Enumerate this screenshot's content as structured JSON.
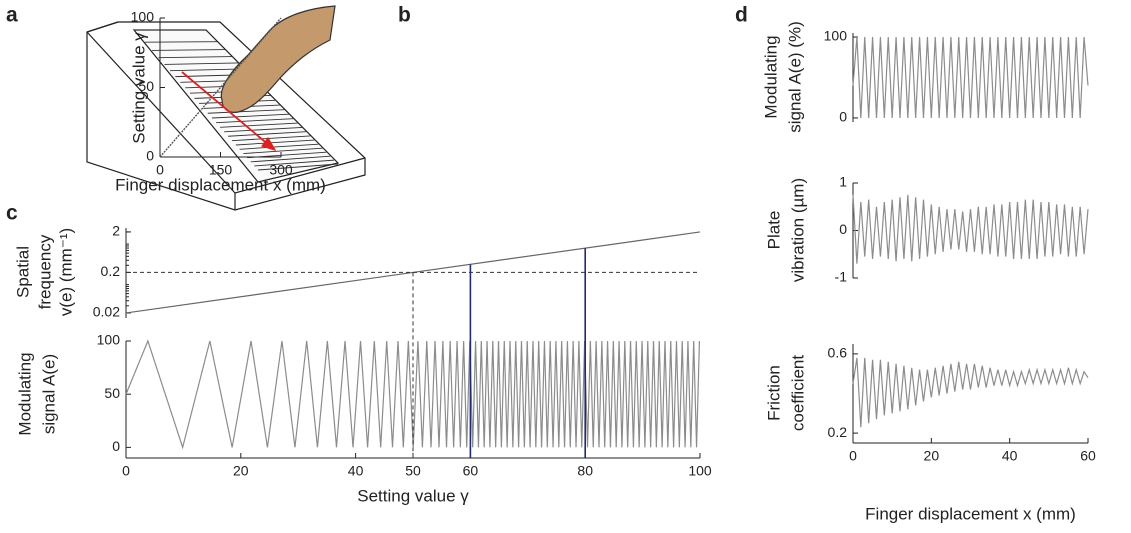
{
  "panel_labels": {
    "a": "a",
    "b": "b",
    "c": "c",
    "d": "d"
  },
  "chart_data": [
    {
      "type": "line",
      "xlabel": "Finger displacement x (mm)",
      "ylabel": [
        "Setting value γ"
      ],
      "x": [
        0,
        300
      ],
      "values": [
        0,
        100
      ],
      "color": "#555555",
      "xlim": [
        0,
        300
      ],
      "ylim": [
        0,
        100
      ],
      "xticks": [
        0,
        150,
        300
      ],
      "yticks": [
        0,
        50,
        100
      ]
    },
    {
      "type": "line",
      "ylabel": [
        "Spatial",
        "frequency",
        "v(e) (mm⁻¹)"
      ],
      "log_y": true,
      "x": [
        0,
        100
      ],
      "values": [
        0.02,
        2
      ],
      "color": "#666666",
      "xlim": [
        0,
        100
      ],
      "ylim": [
        0.015,
        2.5
      ],
      "yticks": [
        0.02,
        0.2,
        2
      ],
      "hline": 0.2,
      "vlines": [
        {
          "x": 50,
          "dashed": true,
          "color": "#333333"
        },
        {
          "x": 60,
          "color": "#1f2a7a"
        },
        {
          "x": 80,
          "color": "#1f2a7a"
        }
      ]
    },
    {
      "type": "line",
      "xlabel": "Setting value γ",
      "ylabel": [
        "Modulating",
        "signal A(e)"
      ],
      "color": "#8c8c8c",
      "xlim": [
        0,
        100
      ],
      "ylim": [
        -10,
        100
      ],
      "xticks": [
        0,
        20,
        40,
        50,
        60,
        80,
        100
      ],
      "yticks": [
        0,
        50,
        100
      ],
      "x": [
        0,
        3.81,
        9.87,
        14.61,
        18.49,
        21.78,
        24.64,
        27.17,
        29.43,
        31.48,
        33.35,
        35.08,
        36.67,
        38.16,
        39.55,
        40.86,
        42.09,
        43.26,
        44.37,
        45.42,
        46.43,
        47.39,
        48.31,
        49.19,
        50.04,
        50.86,
        51.64,
        52.4,
        53.14,
        53.84,
        54.53,
        55.2,
        55.84,
        56.47,
        57.08,
        57.68,
        58.25,
        58.82,
        59.36,
        59.9,
        60.4,
        60.9,
        61.4,
        61.9,
        62.4,
        62.9,
        63.4,
        63.9,
        64.4,
        64.9,
        65.4,
        65.9,
        66.4,
        66.9,
        67.4,
        67.9,
        68.4,
        68.9,
        69.4,
        69.9,
        70.4,
        70.9,
        71.4,
        71.9,
        72.4,
        72.9,
        73.4,
        73.9,
        74.4,
        74.9,
        75.4,
        75.9,
        76.4,
        76.9,
        77.4,
        77.9,
        78.4,
        78.9,
        79.4,
        79.9,
        80.4,
        80.9,
        81.4,
        81.9,
        82.4,
        82.9,
        83.4,
        83.9,
        84.4,
        84.9,
        85.4,
        85.9,
        86.4,
        86.9,
        87.4,
        87.9,
        88.4,
        88.9,
        89.4,
        89.9,
        90.4,
        90.9,
        91.4,
        91.9,
        92.4,
        92.9,
        93.4,
        93.9,
        94.4,
        94.9,
        95.4,
        95.9,
        96.4,
        96.9,
        97.4,
        97.9,
        98.4,
        98.9,
        99.4,
        99.9
      ],
      "values": [
        50,
        100,
        0,
        100,
        0,
        100,
        0,
        100,
        0,
        100,
        0,
        100,
        0,
        100,
        0,
        100,
        0,
        100,
        0,
        100,
        0,
        100,
        0,
        100,
        0,
        100,
        0,
        100,
        0,
        100,
        0,
        100,
        0,
        100,
        0,
        100,
        0,
        100,
        0,
        100,
        0,
        100,
        0,
        100,
        0,
        100,
        0,
        100,
        0,
        100,
        0,
        100,
        0,
        100,
        0,
        100,
        0,
        100,
        0,
        100,
        0,
        100,
        0,
        100,
        0,
        100,
        0,
        100,
        0,
        100,
        0,
        100,
        0,
        100,
        0,
        100,
        0,
        100,
        0,
        100,
        0,
        100,
        0,
        100,
        0,
        100,
        0,
        100,
        0,
        100,
        0,
        100,
        0,
        100,
        0,
        100,
        0,
        100,
        0,
        100,
        0,
        100,
        0,
        100,
        0,
        100,
        0,
        100,
        0,
        100,
        0,
        100,
        0,
        100,
        0,
        100,
        0,
        100,
        0,
        100
      ]
    },
    {
      "type": "line",
      "ylabel": [
        "Modulating",
        "signal A(e) (%)"
      ],
      "color": "#8c8c8c",
      "xlim": [
        0,
        60
      ],
      "ylim": [
        -5,
        105
      ],
      "yticks": [
        0,
        100
      ],
      "x": [
        0,
        1,
        2,
        3,
        4,
        5,
        6,
        7,
        8,
        9,
        10,
        11,
        12,
        13,
        14,
        15,
        16,
        17,
        18,
        19,
        20,
        21,
        22,
        23,
        24,
        25,
        26,
        27,
        28,
        29,
        30,
        31,
        32,
        33,
        34,
        35,
        36,
        37,
        38,
        39,
        40,
        41,
        42,
        43,
        44,
        45,
        46,
        47,
        48,
        49,
        50,
        51,
        52,
        53,
        54,
        55,
        56,
        57,
        58,
        59,
        60
      ],
      "values": [
        40,
        100,
        0,
        100,
        0,
        100,
        0,
        100,
        0,
        100,
        0,
        100,
        0,
        100,
        0,
        100,
        0,
        100,
        0,
        100,
        0,
        100,
        0,
        100,
        0,
        100,
        0,
        100,
        0,
        100,
        0,
        100,
        0,
        100,
        0,
        100,
        0,
        100,
        0,
        100,
        0,
        100,
        0,
        100,
        0,
        100,
        0,
        100,
        0,
        100,
        0,
        100,
        0,
        100,
        0,
        100,
        0,
        100,
        0,
        100,
        40
      ]
    },
    {
      "type": "line",
      "ylabel": [
        "Plate",
        "vibration (µm)"
      ],
      "color": "#8c8c8c",
      "xlim": [
        0,
        60
      ],
      "ylim": [
        -1,
        1
      ],
      "yticks": [
        -1,
        0,
        1
      ],
      "x": [
        0,
        1,
        2,
        3,
        4,
        5,
        6,
        7,
        8,
        9,
        10,
        11,
        12,
        13,
        14,
        15,
        16,
        17,
        18,
        19,
        20,
        21,
        22,
        23,
        24,
        25,
        26,
        27,
        28,
        29,
        30,
        31,
        32,
        33,
        34,
        35,
        36,
        37,
        38,
        39,
        40,
        41,
        42,
        43,
        44,
        45,
        46,
        47,
        48,
        49,
        50,
        51,
        52,
        53,
        54,
        55,
        56,
        57,
        58,
        59,
        60
      ],
      "values": [
        0.75,
        -0.7,
        0.6,
        -0.55,
        0.65,
        -0.6,
        0.5,
        -0.55,
        0.6,
        -0.6,
        0.65,
        -0.65,
        0.7,
        -0.6,
        0.75,
        -0.65,
        0.7,
        -0.6,
        0.65,
        -0.55,
        0.55,
        -0.5,
        0.5,
        -0.45,
        0.45,
        -0.4,
        0.45,
        -0.4,
        0.4,
        -0.45,
        0.45,
        -0.45,
        0.5,
        -0.5,
        0.5,
        -0.5,
        0.55,
        -0.55,
        0.55,
        -0.55,
        0.6,
        -0.6,
        0.6,
        -0.6,
        0.65,
        -0.6,
        0.65,
        -0.6,
        0.6,
        -0.55,
        0.6,
        -0.55,
        0.55,
        -0.5,
        0.55,
        -0.55,
        0.5,
        -0.55,
        0.5,
        -0.5,
        0.45
      ]
    },
    {
      "type": "line",
      "xlabel": "Finger displacement x (mm)",
      "ylabel": [
        "Friction",
        "coefficient"
      ],
      "color": "#8c8c8c",
      "xlim": [
        0,
        60
      ],
      "ylim": [
        0.15,
        0.65
      ],
      "xticks": [
        0,
        20,
        40,
        60
      ],
      "yticks": [
        0.2,
        0.6
      ],
      "x": [
        0,
        1,
        2,
        3,
        4,
        5,
        6,
        7,
        8,
        9,
        10,
        11,
        12,
        13,
        14,
        15,
        16,
        17,
        18,
        19,
        20,
        21,
        22,
        23,
        24,
        25,
        26,
        27,
        28,
        29,
        30,
        31,
        32,
        33,
        34,
        35,
        36,
        37,
        38,
        39,
        40,
        41,
        42,
        43,
        44,
        45,
        46,
        47,
        48,
        49,
        50,
        51,
        52,
        53,
        54,
        55,
        56,
        57,
        58,
        59,
        60
      ],
      "values": [
        0.45,
        0.58,
        0.23,
        0.58,
        0.25,
        0.57,
        0.27,
        0.57,
        0.29,
        0.56,
        0.3,
        0.55,
        0.31,
        0.54,
        0.32,
        0.53,
        0.34,
        0.52,
        0.36,
        0.52,
        0.38,
        0.53,
        0.39,
        0.54,
        0.4,
        0.55,
        0.41,
        0.56,
        0.42,
        0.55,
        0.42,
        0.55,
        0.43,
        0.54,
        0.43,
        0.53,
        0.44,
        0.52,
        0.44,
        0.52,
        0.44,
        0.51,
        0.44,
        0.51,
        0.45,
        0.52,
        0.45,
        0.52,
        0.45,
        0.52,
        0.45,
        0.52,
        0.45,
        0.52,
        0.45,
        0.53,
        0.45,
        0.52,
        0.45,
        0.51,
        0.48
      ]
    }
  ]
}
